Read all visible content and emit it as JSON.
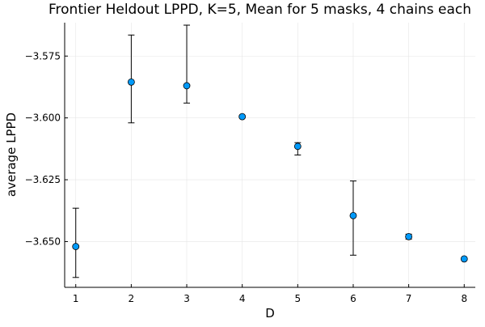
{
  "chart_data": {
    "type": "scatter",
    "title": "Frontier Heldout LPPD, K=5, Mean for 5 masks, 4 chains each",
    "xlabel": "D",
    "ylabel": "average LPPD",
    "xlim": [
      0.8,
      8.2
    ],
    "ylim": [
      -3.6685,
      -3.5615
    ],
    "x_ticks": [
      1,
      2,
      3,
      4,
      5,
      6,
      7,
      8
    ],
    "y_ticks": [
      -3.575,
      -3.6,
      -3.625,
      -3.65
    ],
    "y_tick_labels": [
      "−3.575",
      "−3.600",
      "−3.625",
      "−3.650"
    ],
    "grid": true,
    "legend": "none",
    "marker_color": "#009AFA",
    "series": [
      {
        "x": [
          1,
          2,
          3,
          4,
          5,
          6,
          7,
          8
        ],
        "y": [
          -3.652,
          -3.5855,
          -3.587,
          -3.5995,
          -3.6115,
          -3.6395,
          -3.648,
          -3.657
        ],
        "err_low": [
          -3.6645,
          -3.602,
          -3.594,
          -3.5995,
          -3.615,
          -3.6555,
          -3.649,
          -3.657
        ],
        "err_high": [
          -3.6365,
          -3.5665,
          -3.5625,
          -3.5995,
          -3.61,
          -3.6255,
          -3.647,
          -3.657
        ]
      }
    ]
  }
}
